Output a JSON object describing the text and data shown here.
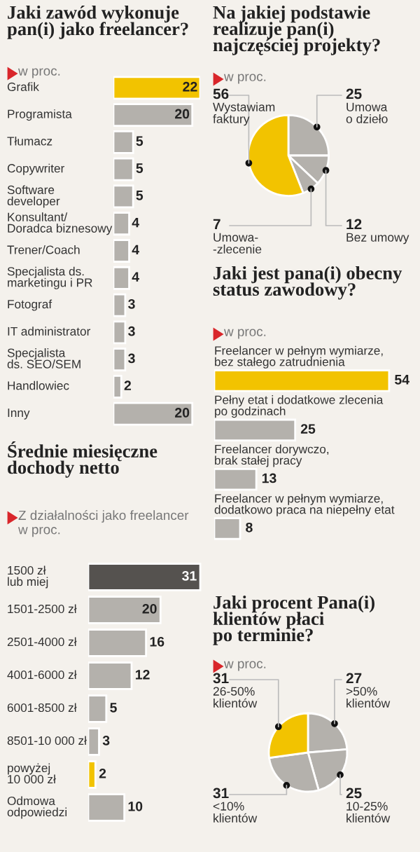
{
  "chart_data": [
    {
      "type": "bar",
      "orientation": "horizontal",
      "title": "Jaki zawód wykonuje\npan(i) jako freelancer?",
      "subtitle": "w proc.",
      "data_labels": true,
      "categories": [
        "Grafik",
        "Programista",
        "Tłumacz",
        "Copywriter",
        "Software\ndeveloper",
        "Konsultant/\nDoradca biznesowy",
        "Trener/Coach",
        "Specjalista ds.\nmarketingu i PR",
        "Fotograf",
        "IT administrator",
        "Specjalista\nds. SEO/SEM",
        "Handlowiec",
        "Inny"
      ],
      "values": [
        22,
        20,
        5,
        5,
        5,
        4,
        4,
        4,
        3,
        3,
        3,
        2,
        20
      ],
      "colors": [
        "#f2c300",
        "#b4b1ac",
        "#b4b1ac",
        "#b4b1ac",
        "#b4b1ac",
        "#b4b1ac",
        "#b4b1ac",
        "#b4b1ac",
        "#b4b1ac",
        "#b4b1ac",
        "#b4b1ac",
        "#b4b1ac",
        "#b4b1ac"
      ]
    },
    {
      "type": "pie",
      "data_labels": true,
      "title": "Na jakiej podstawie\nrealizuje pan(i)\nnajczęściej projekty?",
      "subtitle": "w proc.",
      "categories": [
        "Umowa\no dzieło",
        "Bez umowy",
        "Umowa-\n-zlecenie",
        "Wystawiam\nfaktury"
      ],
      "values": [
        25,
        12,
        7,
        56
      ],
      "colors": [
        "#b4b1ac",
        "#b4b1ac",
        "#b4b1ac",
        "#f2c300"
      ]
    },
    {
      "type": "bar",
      "orientation": "horizontal",
      "title": "Jaki jest pana(i) obecny\nstatus zawodowy?",
      "subtitle": "w proc.",
      "data_labels": true,
      "categories": [
        "Freelancer w pełnym wymiarze,\nbez stałego zatrudnienia",
        "Pełny etat i dodatkowe zlecenia\npo godzinach",
        "Freelancer dorywczo,\nbrak stałej pracy",
        "Freelancer w pełnym wymiarze,\ndodatkowo praca na niepełny etat"
      ],
      "values": [
        54,
        25,
        13,
        8
      ],
      "colors": [
        "#f2c300",
        "#b4b1ac",
        "#b4b1ac",
        "#b4b1ac"
      ]
    },
    {
      "type": "bar",
      "orientation": "horizontal",
      "title": "Średnie miesięczne\ndochody netto",
      "subtitle": "Z działalności jako freelancer\nw proc.",
      "data_labels": true,
      "categories": [
        "1500 zł\nlub miej",
        "1501-2500 zł",
        "2501-4000 zł",
        "4001-6000 zł",
        "6001-8500 zł",
        "8501-10 000 zł",
        "powyżej\n10 000 zł",
        "Odmowa\nodpowiedzi"
      ],
      "values": [
        31,
        20,
        16,
        12,
        5,
        3,
        2,
        10
      ],
      "colors": [
        "#55524f",
        "#b4b1ac",
        "#b4b1ac",
        "#b4b1ac",
        "#b4b1ac",
        "#b4b1ac",
        "#f2c300",
        "#b4b1ac"
      ]
    },
    {
      "type": "pie",
      "data_labels": true,
      "title": "Jaki procent Pana(i)\nklientów płaci\npo terminie?",
      "subtitle": "w proc.",
      "categories": [
        ">50%\nklientów",
        "10-25%\nklientów",
        "<10%\nklientów",
        "26-50%\nklientów"
      ],
      "values": [
        27,
        25,
        31,
        31
      ],
      "colors": [
        "#b4b1ac",
        "#b4b1ac",
        "#b4b1ac",
        "#f2c300"
      ]
    }
  ]
}
